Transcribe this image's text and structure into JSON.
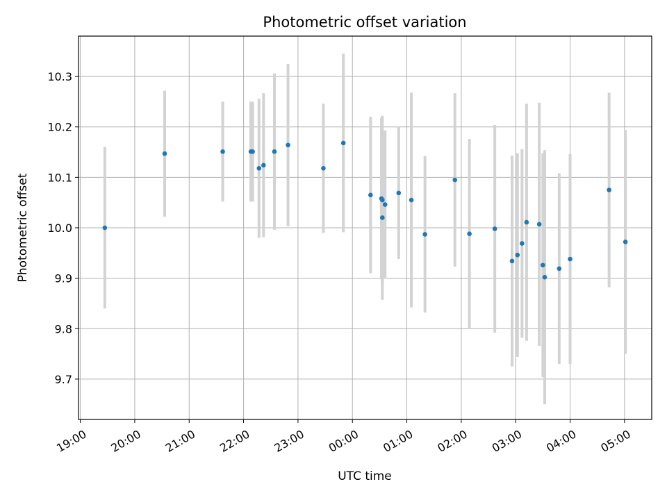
{
  "chart_data": {
    "type": "scatter",
    "title": "Photometric offset variation",
    "xlabel": "UTC time",
    "ylabel": "Photometric offset",
    "x_axis": "time",
    "xlim": [
      "18:58",
      "05:30"
    ],
    "ylim": [
      9.62,
      10.38
    ],
    "xticks": [
      "19:00",
      "20:00",
      "21:00",
      "22:00",
      "23:00",
      "00:00",
      "01:00",
      "02:00",
      "03:00",
      "04:00",
      "05:00"
    ],
    "yticks": [
      "9.7",
      "9.8",
      "9.9",
      "10.0",
      "10.1",
      "10.2",
      "10.3"
    ],
    "grid": true,
    "marker_color": "#1f77b4",
    "errorbar_color": "#d3d3d3",
    "points": [
      {
        "x": "19:27",
        "y": 10.0,
        "err": 0.16
      },
      {
        "x": "20:33",
        "y": 10.147,
        "err": 0.125
      },
      {
        "x": "21:37",
        "y": 10.151,
        "err": 0.099
      },
      {
        "x": "22:08",
        "y": 10.151,
        "err": 0.099
      },
      {
        "x": "22:10",
        "y": 10.151,
        "err": 0.099
      },
      {
        "x": "22:17",
        "y": 10.118,
        "err": 0.138
      },
      {
        "x": "22:22",
        "y": 10.124,
        "err": 0.143
      },
      {
        "x": "22:34",
        "y": 10.151,
        "err": 0.155
      },
      {
        "x": "22:49",
        "y": 10.164,
        "err": 0.161
      },
      {
        "x": "23:28",
        "y": 10.118,
        "err": 0.128
      },
      {
        "x": "23:50",
        "y": 10.168,
        "err": 0.177
      },
      {
        "x": "00:20",
        "y": 10.065,
        "err": 0.155
      },
      {
        "x": "00:32",
        "y": 10.058,
        "err": 0.16
      },
      {
        "x": "00:33",
        "y": 10.055,
        "err": 0.167
      },
      {
        "x": "00:33",
        "y": 10.02,
        "err": 0.163
      },
      {
        "x": "00:36",
        "y": 10.046,
        "err": 0.147
      },
      {
        "x": "00:51",
        "y": 10.069,
        "err": 0.131
      },
      {
        "x": "01:05",
        "y": 10.055,
        "err": 0.213
      },
      {
        "x": "01:20",
        "y": 9.987,
        "err": 0.155
      },
      {
        "x": "01:53",
        "y": 10.095,
        "err": 0.172
      },
      {
        "x": "02:09",
        "y": 9.988,
        "err": 0.188
      },
      {
        "x": "02:37",
        "y": 9.998,
        "err": 0.206
      },
      {
        "x": "02:56",
        "y": 9.934,
        "err": 0.209
      },
      {
        "x": "03:02",
        "y": 9.946,
        "err": 0.202
      },
      {
        "x": "03:07",
        "y": 9.969,
        "err": 0.187
      },
      {
        "x": "03:12",
        "y": 10.011,
        "err": 0.235
      },
      {
        "x": "03:26",
        "y": 10.007,
        "err": 0.241
      },
      {
        "x": "03:30",
        "y": 9.926,
        "err": 0.222
      },
      {
        "x": "03:32",
        "y": 9.902,
        "err": 0.252
      },
      {
        "x": "03:48",
        "y": 9.919,
        "err": 0.189
      },
      {
        "x": "04:00",
        "y": 9.938,
        "err": 0.208
      },
      {
        "x": "04:43",
        "y": 10.075,
        "err": 0.193
      },
      {
        "x": "05:01",
        "y": 9.972,
        "err": 0.222
      }
    ]
  }
}
